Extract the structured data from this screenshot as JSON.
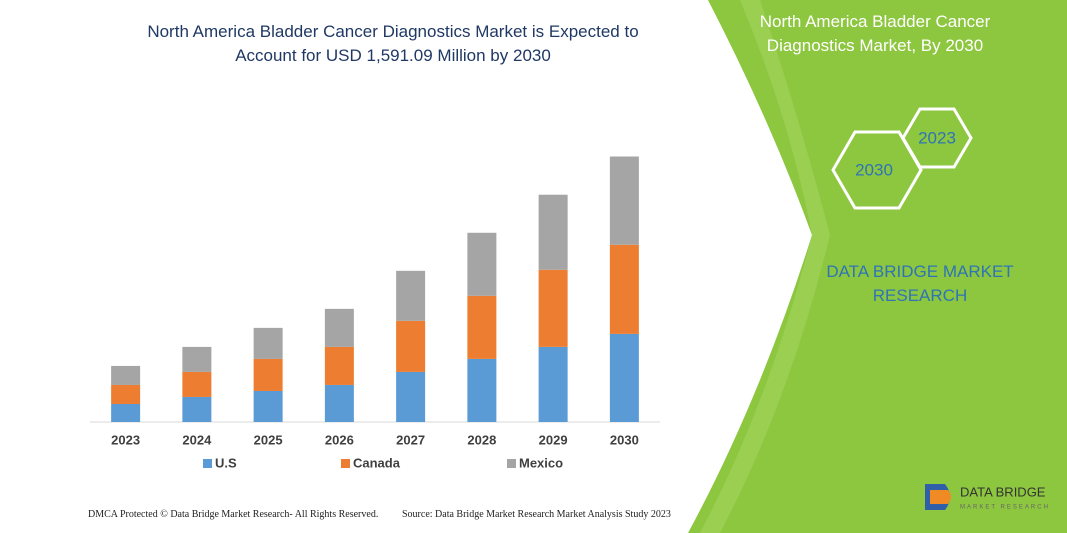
{
  "chart_data": {
    "type": "bar",
    "stacked": true,
    "title": "North America Bladder Cancer Diagnostics Market is Expected to Account for USD 1,591.09 Million by 2030",
    "categories": [
      "2023",
      "2024",
      "2025",
      "2026",
      "2027",
      "2028",
      "2029",
      "2030"
    ],
    "series": [
      {
        "name": "U.S",
        "color": "#5b9bd5",
        "values": [
          108,
          150,
          186,
          222,
          300,
          378,
          450,
          528
        ]
      },
      {
        "name": "Canada",
        "color": "#ed7d31",
        "values": [
          114,
          150,
          192,
          228,
          306,
          378,
          462,
          534
        ]
      },
      {
        "name": "Mexico",
        "color": "#a5a5a5",
        "values": [
          114,
          150,
          186,
          228,
          300,
          378,
          450,
          529
        ]
      }
    ],
    "ylim": [
      0,
      1600
    ]
  },
  "panel": {
    "title": "North America Bladder Cancer Diagnostics Market, By 2030",
    "hex_small": "2023",
    "hex_large": "2030",
    "brand": "DATA BRIDGE MARKET RESEARCH"
  },
  "footer": {
    "dmca": "DMCA Protected © Data Bridge Market Research- All Rights Reserved.",
    "source": "Source: Data Bridge Market Research Market Analysis Study 2023"
  },
  "logo": {
    "name": "DATA BRIDGE",
    "tagline": "MARKET RESEARCH"
  }
}
